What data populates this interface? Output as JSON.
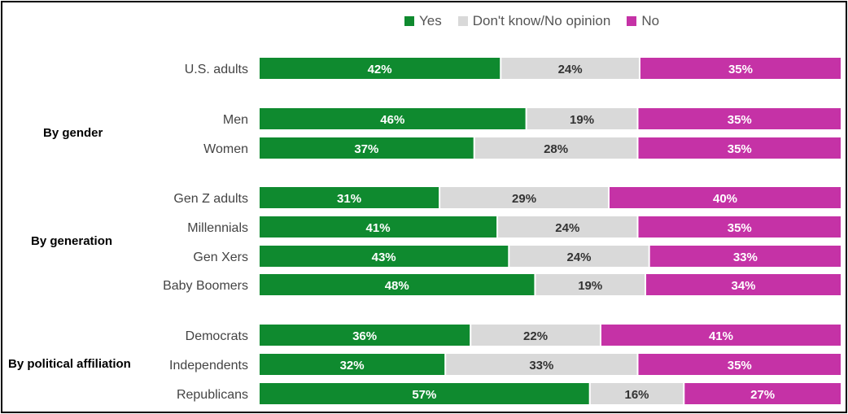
{
  "chart_data": {
    "type": "bar",
    "orientation": "horizontal",
    "stacked": true,
    "normalized_to": 100,
    "legend": {
      "placement": "top-right",
      "entries": [
        "Yes",
        "Don't know/No opinion",
        "No"
      ]
    },
    "colors": {
      "Yes": "#0f8a2f",
      "Don't know/No opinion": "#d9d9d9",
      "No": "#c532a6"
    },
    "label_colors": {
      "Yes": "#ffffff",
      "Don't know/No opinion": "#333333",
      "No": "#ffffff"
    },
    "groups": [
      {
        "label": "",
        "categories": [
          "U.S. adults"
        ]
      },
      {
        "label": "By gender",
        "categories": [
          "Men",
          "Women"
        ]
      },
      {
        "label": "By generation",
        "categories": [
          "Gen Z adults",
          "Millennials",
          "Gen Xers",
          "Baby Boomers"
        ]
      },
      {
        "label": "By political affiliation",
        "categories": [
          "Democrats",
          "Independents",
          "Republicans"
        ]
      }
    ],
    "categories": [
      "U.S. adults",
      "Men",
      "Women",
      "Gen Z adults",
      "Millennials",
      "Gen Xers",
      "Baby Boomers",
      "Democrats",
      "Independents",
      "Republicans"
    ],
    "series": [
      {
        "name": "Yes",
        "values": [
          42,
          46,
          37,
          31,
          41,
          43,
          48,
          36,
          32,
          57
        ]
      },
      {
        "name": "Don't know/No opinion",
        "values": [
          24,
          19,
          28,
          29,
          24,
          24,
          19,
          22,
          33,
          16
        ]
      },
      {
        "name": "No",
        "values": [
          35,
          35,
          35,
          40,
          35,
          33,
          34,
          41,
          35,
          27
        ]
      }
    ],
    "value_suffix": "%"
  }
}
